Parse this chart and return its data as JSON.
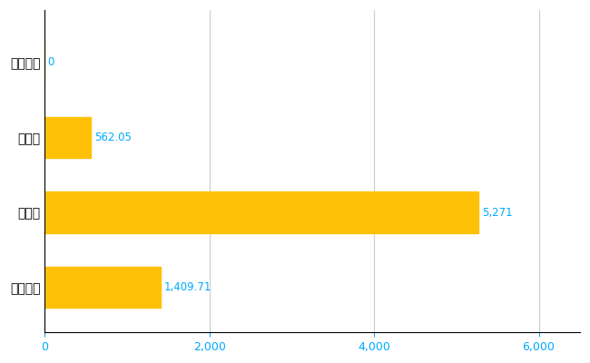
{
  "categories": [
    "十津川村",
    "県平均",
    "県最大",
    "全国平均"
  ],
  "values": [
    0,
    562.05,
    5271,
    1409.71
  ],
  "bar_color": "#FFC107",
  "label_color": "#00AAFF",
  "xlim": [
    0,
    6500
  ],
  "xticks": [
    0,
    2000,
    4000,
    6000
  ],
  "bar_height": 0.55,
  "grid_color": "#CCCCCC",
  "bg_color": "#FFFFFF",
  "value_labels": [
    "0",
    "562.05",
    "5,271",
    "1,409.71"
  ],
  "tick_label_color": "#00AAFF"
}
